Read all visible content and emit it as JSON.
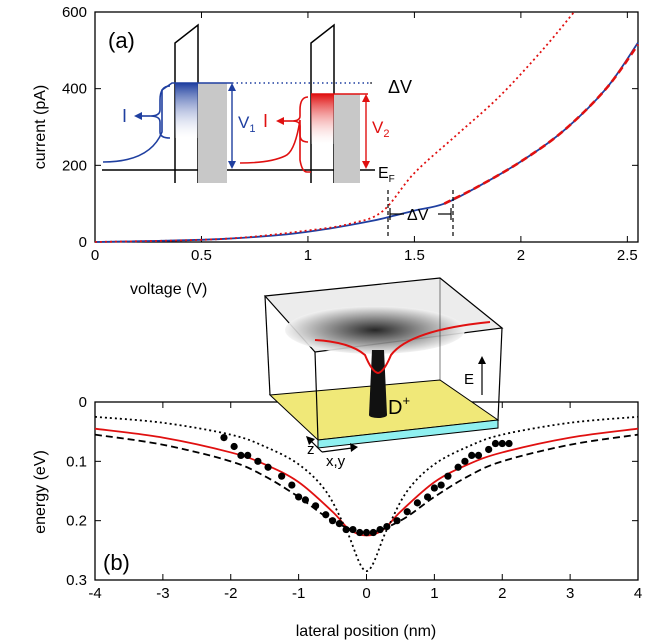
{
  "chart_data": [
    {
      "panel": "(a)",
      "type": "line",
      "xlabel": "voltage (V)",
      "ylabel": "current (pA)",
      "xlim": [
        0,
        2.55
      ],
      "ylim": [
        0,
        600
      ],
      "xticks": [
        "0",
        "0.5",
        "1",
        "1.5",
        "2",
        "2.5"
      ],
      "yticks": [
        "0",
        "200",
        "400",
        "600"
      ],
      "series": [
        {
          "style": "solid",
          "color": "#1f3fa0",
          "x": [
            0,
            0.3,
            0.6,
            0.9,
            1.1,
            1.3,
            1.4,
            1.5,
            1.64,
            1.8,
            2.0,
            2.2,
            2.4,
            2.55
          ],
          "y": [
            0,
            3,
            8,
            20,
            35,
            55,
            68,
            82,
            100,
            145,
            210,
            290,
            400,
            520
          ]
        },
        {
          "style": "dotted",
          "color": "#e01010",
          "x": [
            0,
            0.6,
            1.0,
            1.2,
            1.35,
            1.5,
            1.7,
            1.9,
            2.1,
            2.25
          ],
          "y": [
            0,
            8,
            30,
            48,
            80,
            180,
            280,
            380,
            500,
            600
          ]
        },
        {
          "style": "dashed",
          "color": "#e01010",
          "x": [
            1.64,
            1.8,
            2.0,
            2.2,
            2.4,
            2.55
          ],
          "y": [
            100,
            145,
            210,
            290,
            400,
            515
          ]
        }
      ],
      "annotations": {
        "inset_labels": [
          "I",
          "V1",
          "I",
          "V2",
          "EF",
          "ΔV"
        ],
        "delta_label": "ΔV"
      }
    },
    {
      "panel": "(b)",
      "type": "line",
      "xlabel": "lateral position (nm)",
      "ylabel": "energy (eV)",
      "xlim": [
        -4,
        4
      ],
      "ylim": [
        0.3,
        0
      ],
      "xticks": [
        "-4",
        "-3",
        "-2",
        "-1",
        "0",
        "1",
        "2",
        "3",
        "4"
      ],
      "yticks": [
        "0",
        "0.1",
        "0.2",
        "0.3"
      ],
      "series": [
        {
          "style": "solid",
          "color": "#e01010",
          "x": [
            -4,
            -3,
            -2,
            -1.5,
            -1,
            -0.5,
            -0.25,
            0,
            0.25,
            0.5,
            1,
            1.5,
            2,
            3,
            4
          ],
          "y": [
            0.045,
            0.06,
            0.085,
            0.105,
            0.135,
            0.185,
            0.215,
            0.225,
            0.215,
            0.185,
            0.135,
            0.105,
            0.085,
            0.06,
            0.045
          ]
        },
        {
          "style": "dashed",
          "color": "#000000",
          "x": [
            -4,
            -3,
            -2,
            -1.5,
            -1,
            -0.5,
            0,
            0.5,
            1,
            1.5,
            2,
            3,
            4
          ],
          "y": [
            0.055,
            0.072,
            0.1,
            0.125,
            0.16,
            0.2,
            0.22,
            0.2,
            0.16,
            0.125,
            0.1,
            0.072,
            0.055
          ]
        },
        {
          "style": "dotted",
          "color": "#000000",
          "x": [
            -4,
            -3,
            -2,
            -1.5,
            -1,
            -0.6,
            -0.3,
            0,
            0.3,
            0.6,
            1,
            1.5,
            2,
            3,
            4
          ],
          "y": [
            0.025,
            0.035,
            0.055,
            0.075,
            0.105,
            0.15,
            0.215,
            0.285,
            0.215,
            0.15,
            0.105,
            0.075,
            0.055,
            0.035,
            0.025
          ]
        },
        {
          "style": "points",
          "color": "#000000",
          "x": [
            -2.1,
            -1.95,
            -1.85,
            -1.75,
            -1.6,
            -1.45,
            -1.25,
            -1.1,
            -1.0,
            -0.9,
            -0.75,
            -0.6,
            -0.5,
            -0.4,
            -0.3,
            -0.2,
            -0.1,
            0.0,
            0.1,
            0.2,
            0.3,
            0.45,
            0.6,
            0.75,
            0.9,
            1.0,
            1.1,
            1.2,
            1.35,
            1.45,
            1.55,
            1.65,
            1.8,
            1.9,
            2.0,
            2.1
          ],
          "y": [
            0.06,
            0.075,
            0.09,
            0.09,
            0.1,
            0.11,
            0.125,
            0.14,
            0.16,
            0.165,
            0.175,
            0.19,
            0.2,
            0.205,
            0.215,
            0.215,
            0.22,
            0.22,
            0.22,
            0.215,
            0.21,
            0.2,
            0.185,
            0.17,
            0.16,
            0.145,
            0.14,
            0.125,
            0.11,
            0.1,
            0.09,
            0.09,
            0.08,
            0.07,
            0.07,
            0.07
          ]
        }
      ],
      "annotations": {
        "inset_labels": [
          "E",
          "z",
          "x,y",
          "D+"
        ]
      }
    }
  ],
  "labels": {
    "panel_a": "(a)",
    "panel_b": "(b)",
    "v1": "V",
    "v1_sub": "1",
    "v2": "V",
    "v2_sub": "2",
    "ef": "E",
    "ef_sub": "F",
    "delta_v": "ΔV",
    "current_i": "I",
    "e_axis": "E",
    "z_axis": "z",
    "xy_axis": "x,y",
    "donor": "D",
    "donor_sup": "+"
  }
}
